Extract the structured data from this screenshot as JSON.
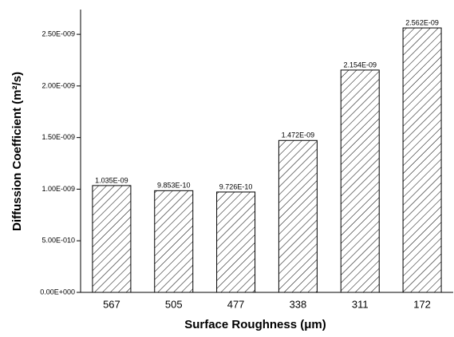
{
  "chart_data": {
    "type": "bar",
    "x_label": "Surface Roughness (μm)",
    "y_label": "Diffussion Coefficient (m²/s)",
    "categories": [
      "567",
      "505",
      "477",
      "338",
      "311",
      "172"
    ],
    "values": [
      1.035e-09,
      9.853e-10,
      9.726e-10,
      1.472e-09,
      2.154e-09,
      2.562e-09
    ],
    "value_labels": [
      "1.035E-09",
      "9.853E-10",
      "9.726E-10",
      "1.472E-09",
      "2.154E-09",
      "2.562E-09"
    ],
    "color": "#000000",
    "ylim": [
      0,
      2.74e-09
    ],
    "yticks": [
      {
        "value": 0,
        "label": "0.00E+000"
      },
      {
        "value": 5e-10,
        "label": "5.00E-010"
      },
      {
        "value": 1e-09,
        "label": "1.00E-009"
      },
      {
        "value": 1.5e-09,
        "label": "1.50E-009"
      },
      {
        "value": 2e-09,
        "label": "2.00E-009"
      },
      {
        "value": 2.5e-09,
        "label": "2.50E-009"
      }
    ]
  }
}
